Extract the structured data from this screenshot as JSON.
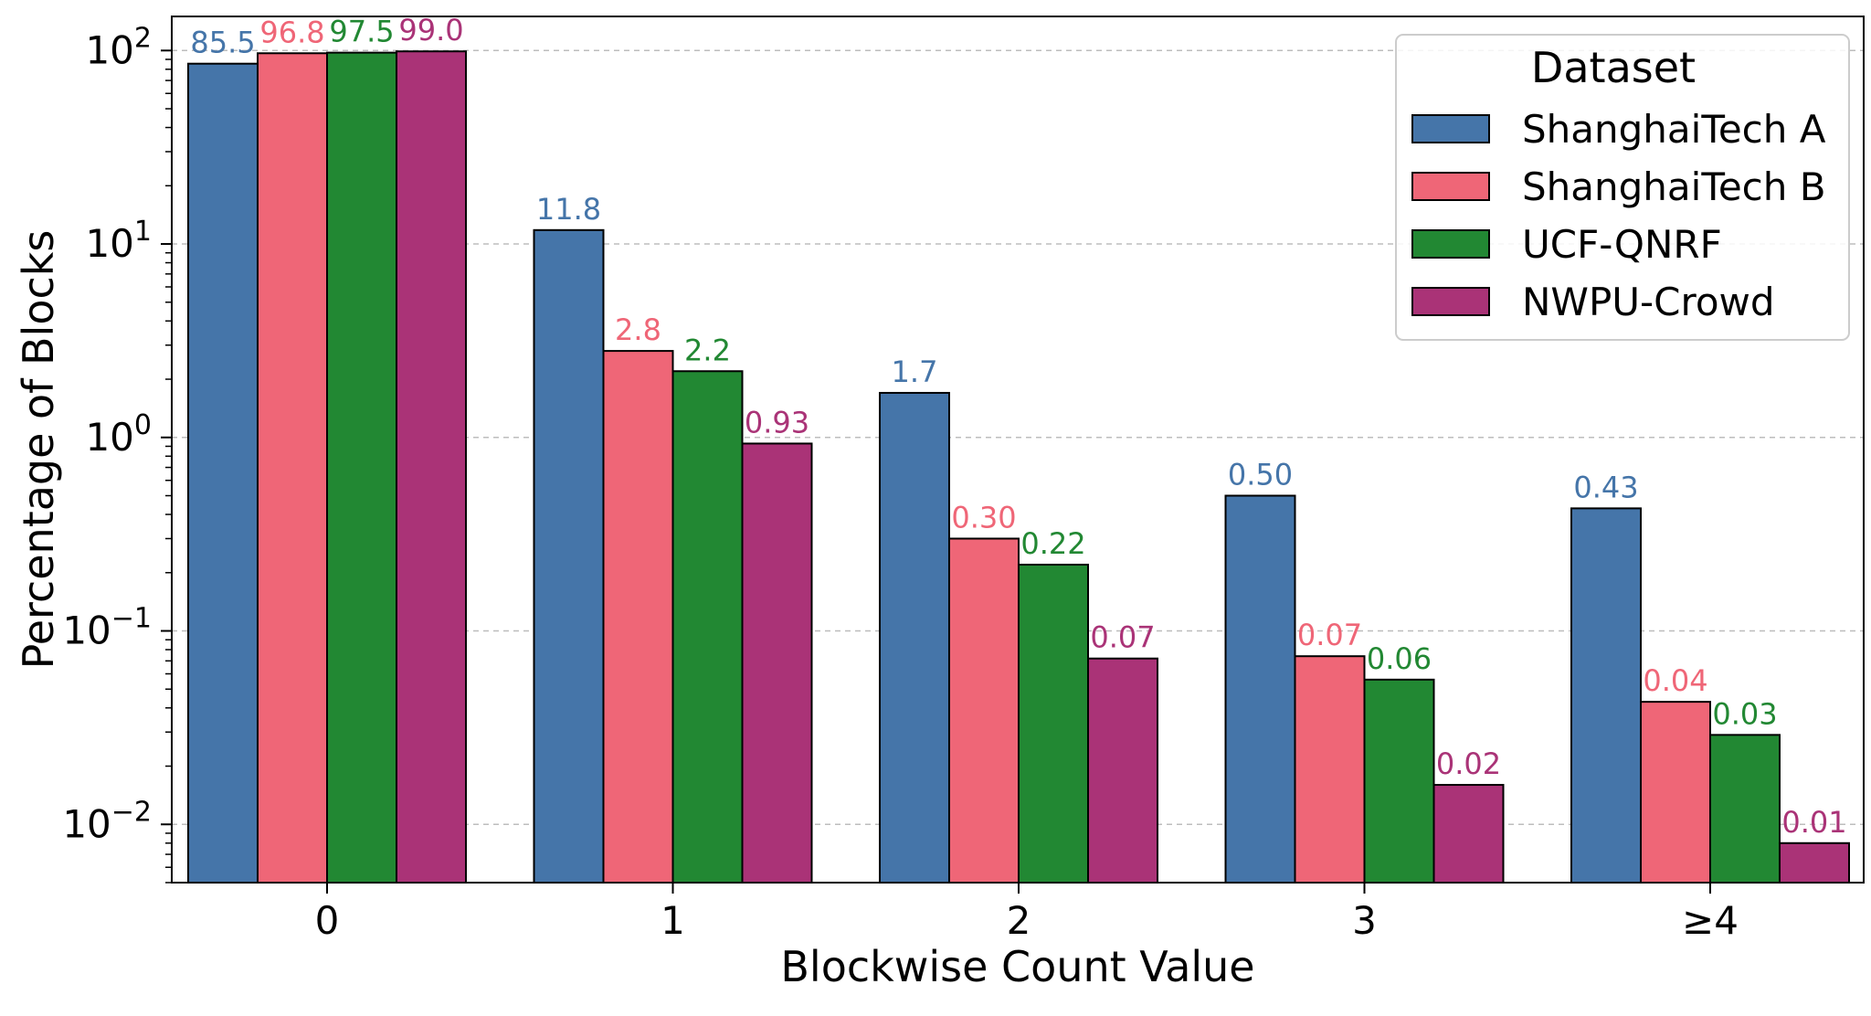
{
  "chart_data": {
    "type": "bar",
    "xlabel": "Blockwise Count Value",
    "ylabel": "Percentage of Blocks",
    "yscale": "log",
    "ylim": [
      0.005,
      150
    ],
    "y_ticks": [
      0.01,
      0.1,
      1,
      10,
      100
    ],
    "y_tick_labels": [
      {
        "base": "10",
        "exp": "−2"
      },
      {
        "base": "10",
        "exp": "−1"
      },
      {
        "base": "10",
        "exp": "0"
      },
      {
        "base": "10",
        "exp": "1"
      },
      {
        "base": "10",
        "exp": "2"
      }
    ],
    "grid": "horizontal dashed",
    "categories": [
      "0",
      "1",
      "2",
      "3",
      "≥4"
    ],
    "legend": {
      "title": "Dataset",
      "placement": "top-right"
    },
    "series": [
      {
        "name": "ShanghaiTech A",
        "color": "#4575a9",
        "values": [
          85.5,
          11.8,
          1.7,
          0.5,
          0.43
        ],
        "labels": [
          "85.5",
          "11.8",
          "1.7",
          "0.50",
          "0.43"
        ]
      },
      {
        "name": "ShanghaiTech B",
        "color": "#ef6677",
        "values": [
          96.8,
          2.8,
          0.3,
          0.074,
          0.043
        ],
        "labels": [
          "96.8",
          "2.8",
          "0.30",
          "0.07",
          "0.04"
        ]
      },
      {
        "name": "UCF-QNRF",
        "color": "#228833",
        "values": [
          97.5,
          2.2,
          0.22,
          0.056,
          0.029
        ],
        "labels": [
          "97.5",
          "2.2",
          "0.22",
          "0.06",
          "0.03"
        ]
      },
      {
        "name": "NWPU-Crowd",
        "color": "#aa3377",
        "values": [
          99.0,
          0.93,
          0.072,
          0.016,
          0.008
        ],
        "labels": [
          "99.0",
          "0.93",
          "0.07",
          "0.02",
          "0.01"
        ]
      }
    ]
  }
}
